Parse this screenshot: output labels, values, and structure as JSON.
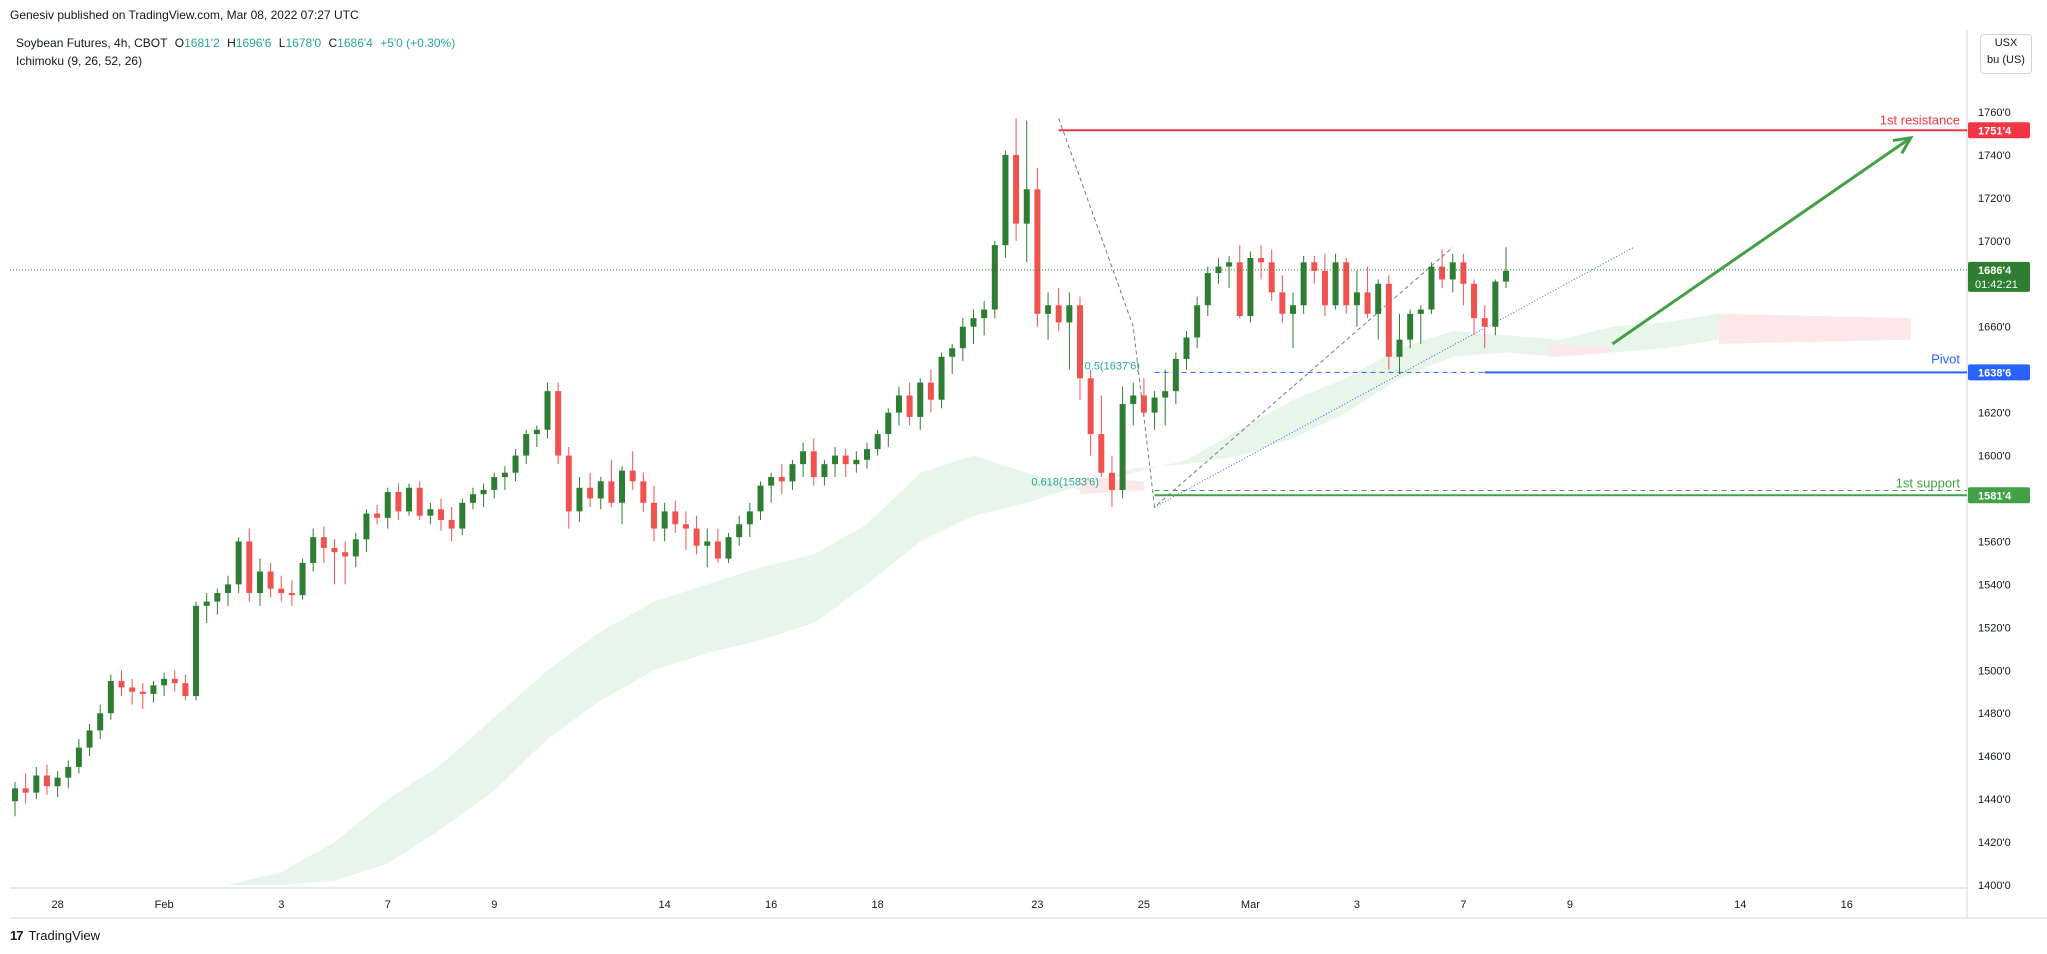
{
  "publisher_line": "Genesiv published on TradingView.com, Mar 08, 2022 07:27 UTC",
  "legend": {
    "symbol": "Soybean Futures, 4h, CBOT",
    "open_label": "O",
    "open": "1681'2",
    "high_label": "H",
    "high": "1696'6",
    "low_label": "L",
    "low": "1678'0",
    "close_label": "C",
    "close": "1686'4",
    "change": "+5'0 (+0.30%)",
    "indicator": "Ichimoku (9, 26, 52, 26)"
  },
  "price_scale": {
    "currency": "USX",
    "unit": "bu (US)"
  },
  "brand": "TradingView",
  "colors": {
    "up": "#2e7d32",
    "down": "#ef5350",
    "resistance": "#f23645",
    "pivot": "#2962ff",
    "support": "#43a047",
    "arrow": "#43a047",
    "cloud_green": "#e8f5e9",
    "cloud_red": "#fde8e8",
    "fib": "#26a69a",
    "trend": "#2962ff",
    "last_price": "#2e7d32"
  },
  "chart_data": {
    "type": "candlestick",
    "timeframe": "4h",
    "ylim": [
      1400,
      1770
    ],
    "y_ticks": [
      "1760'0",
      "1740'0",
      "1720'0",
      "1700'0",
      "1680'0",
      "1660'0",
      "1640'0",
      "1620'0",
      "1600'0",
      "1580'0",
      "1560'0",
      "1540'0",
      "1520'0",
      "1500'0",
      "1480'0",
      "1460'0",
      "1440'0",
      "1420'0",
      "1400'0"
    ],
    "y_tick_values": [
      1760,
      1740,
      1720,
      1700,
      1680,
      1660,
      1640,
      1620,
      1600,
      1580,
      1560,
      1540,
      1520,
      1500,
      1480,
      1460,
      1440,
      1420,
      1400
    ],
    "x_labels": [
      {
        "label": "28",
        "bar": 4
      },
      {
        "label": "Feb",
        "bar": 14
      },
      {
        "label": "3",
        "bar": 25
      },
      {
        "label": "7",
        "bar": 35
      },
      {
        "label": "9",
        "bar": 45
      },
      {
        "label": "14",
        "bar": 61
      },
      {
        "label": "16",
        "bar": 71
      },
      {
        "label": "18",
        "bar": 81
      },
      {
        "label": "23",
        "bar": 96
      },
      {
        "label": "25",
        "bar": 106
      },
      {
        "label": "Mar",
        "bar": 116
      },
      {
        "label": "3",
        "bar": 126
      },
      {
        "label": "7",
        "bar": 136
      },
      {
        "label": "9",
        "bar": 146
      },
      {
        "label": "14",
        "bar": 162
      },
      {
        "label": "16",
        "bar": 172
      }
    ],
    "candles": [
      [
        1439,
        1448,
        1432,
        1445
      ],
      [
        1445,
        1452,
        1438,
        1443
      ],
      [
        1443,
        1455,
        1440,
        1451
      ],
      [
        1451,
        1456,
        1442,
        1446
      ],
      [
        1446,
        1453,
        1441,
        1450
      ],
      [
        1450,
        1458,
        1445,
        1455
      ],
      [
        1455,
        1468,
        1452,
        1464
      ],
      [
        1464,
        1475,
        1460,
        1472
      ],
      [
        1472,
        1484,
        1468,
        1480
      ],
      [
        1480,
        1498,
        1477,
        1495
      ],
      [
        1495,
        1500,
        1488,
        1492
      ],
      [
        1492,
        1496,
        1484,
        1490
      ],
      [
        1490,
        1494,
        1482,
        1489
      ],
      [
        1489,
        1495,
        1485,
        1493
      ],
      [
        1493,
        1499,
        1488,
        1496
      ],
      [
        1496,
        1500,
        1490,
        1494
      ],
      [
        1494,
        1498,
        1486,
        1488
      ],
      [
        1488,
        1532,
        1486,
        1530
      ],
      [
        1530,
        1536,
        1522,
        1532
      ],
      [
        1532,
        1538,
        1526,
        1536
      ],
      [
        1536,
        1544,
        1530,
        1540
      ],
      [
        1540,
        1562,
        1536,
        1560
      ],
      [
        1560,
        1566,
        1532,
        1536
      ],
      [
        1536,
        1552,
        1530,
        1546
      ],
      [
        1546,
        1550,
        1534,
        1538
      ],
      [
        1538,
        1544,
        1532,
        1536
      ],
      [
        1536,
        1542,
        1530,
        1535
      ],
      [
        1535,
        1552,
        1533,
        1550
      ],
      [
        1550,
        1566,
        1546,
        1562
      ],
      [
        1562,
        1567,
        1550,
        1557
      ],
      [
        1557,
        1561,
        1540,
        1555
      ],
      [
        1555,
        1560,
        1540,
        1553
      ],
      [
        1553,
        1564,
        1548,
        1561
      ],
      [
        1561,
        1575,
        1555,
        1573
      ],
      [
        1573,
        1577,
        1568,
        1571
      ],
      [
        1571,
        1585,
        1566,
        1583
      ],
      [
        1583,
        1587,
        1570,
        1574
      ],
      [
        1574,
        1587,
        1572,
        1585
      ],
      [
        1585,
        1588,
        1570,
        1572
      ],
      [
        1572,
        1578,
        1568,
        1575
      ],
      [
        1575,
        1580,
        1565,
        1570
      ],
      [
        1570,
        1576,
        1560,
        1566
      ],
      [
        1566,
        1580,
        1563,
        1578
      ],
      [
        1578,
        1585,
        1575,
        1582
      ],
      [
        1582,
        1587,
        1576,
        1584
      ],
      [
        1584,
        1592,
        1580,
        1590
      ],
      [
        1590,
        1595,
        1584,
        1592
      ],
      [
        1592,
        1603,
        1588,
        1600
      ],
      [
        1600,
        1612,
        1596,
        1610
      ],
      [
        1610,
        1614,
        1604,
        1612
      ],
      [
        1612,
        1634,
        1608,
        1630
      ],
      [
        1630,
        1634,
        1596,
        1600
      ],
      [
        1600,
        1604,
        1566,
        1574
      ],
      [
        1574,
        1590,
        1569,
        1585
      ],
      [
        1585,
        1592,
        1576,
        1580
      ],
      [
        1580,
        1590,
        1575,
        1588
      ],
      [
        1588,
        1598,
        1576,
        1578
      ],
      [
        1578,
        1595,
        1568,
        1593
      ],
      [
        1593,
        1602,
        1584,
        1588
      ],
      [
        1588,
        1592,
        1574,
        1578
      ],
      [
        1578,
        1586,
        1560,
        1566
      ],
      [
        1566,
        1578,
        1560,
        1574
      ],
      [
        1574,
        1579,
        1564,
        1568
      ],
      [
        1568,
        1574,
        1556,
        1566
      ],
      [
        1566,
        1572,
        1554,
        1558
      ],
      [
        1558,
        1566,
        1548,
        1560
      ],
      [
        1560,
        1566,
        1550,
        1552
      ],
      [
        1552,
        1564,
        1550,
        1562
      ],
      [
        1562,
        1572,
        1558,
        1568
      ],
      [
        1568,
        1578,
        1562,
        1574
      ],
      [
        1574,
        1588,
        1570,
        1586
      ],
      [
        1586,
        1592,
        1578,
        1590
      ],
      [
        1590,
        1596,
        1582,
        1588
      ],
      [
        1588,
        1598,
        1584,
        1596
      ],
      [
        1596,
        1606,
        1590,
        1602
      ],
      [
        1602,
        1608,
        1586,
        1590
      ],
      [
        1590,
        1598,
        1586,
        1596
      ],
      [
        1596,
        1604,
        1590,
        1600
      ],
      [
        1600,
        1603,
        1590,
        1596
      ],
      [
        1596,
        1602,
        1592,
        1598
      ],
      [
        1598,
        1606,
        1594,
        1603
      ],
      [
        1603,
        1612,
        1600,
        1610
      ],
      [
        1610,
        1622,
        1604,
        1620
      ],
      [
        1620,
        1632,
        1614,
        1628
      ],
      [
        1628,
        1634,
        1614,
        1618
      ],
      [
        1618,
        1636,
        1612,
        1634
      ],
      [
        1634,
        1640,
        1620,
        1626
      ],
      [
        1626,
        1648,
        1622,
        1646
      ],
      [
        1646,
        1652,
        1638,
        1650
      ],
      [
        1650,
        1664,
        1644,
        1660
      ],
      [
        1660,
        1668,
        1652,
        1664
      ],
      [
        1664,
        1672,
        1656,
        1668
      ],
      [
        1668,
        1700,
        1664,
        1698
      ],
      [
        1698,
        1742,
        1692,
        1740
      ],
      [
        1740,
        1757,
        1700,
        1708
      ],
      [
        1708,
        1756,
        1690,
        1724
      ],
      [
        1724,
        1734,
        1660,
        1666
      ],
      [
        1666,
        1676,
        1654,
        1670
      ],
      [
        1670,
        1678,
        1658,
        1662
      ],
      [
        1662,
        1676,
        1640,
        1670
      ],
      [
        1670,
        1674,
        1626,
        1636
      ],
      [
        1636,
        1640,
        1600,
        1610
      ],
      [
        1610,
        1628,
        1590,
        1592
      ],
      [
        1592,
        1600,
        1576,
        1584
      ],
      [
        1584,
        1632,
        1580,
        1624
      ],
      [
        1624,
        1634,
        1614,
        1628
      ],
      [
        1628,
        1636,
        1618,
        1620
      ],
      [
        1620,
        1630,
        1612,
        1627
      ],
      [
        1627,
        1640,
        1614,
        1630
      ],
      [
        1630,
        1648,
        1624,
        1645
      ],
      [
        1645,
        1658,
        1640,
        1655
      ],
      [
        1655,
        1674,
        1650,
        1670
      ],
      [
        1670,
        1688,
        1665,
        1685
      ],
      [
        1685,
        1692,
        1680,
        1688
      ],
      [
        1688,
        1693,
        1678,
        1690
      ],
      [
        1690,
        1698,
        1664,
        1665
      ],
      [
        1665,
        1695,
        1662,
        1692
      ],
      [
        1692,
        1698,
        1682,
        1690
      ],
      [
        1690,
        1696,
        1672,
        1676
      ],
      [
        1676,
        1684,
        1662,
        1666
      ],
      [
        1666,
        1676,
        1650,
        1670
      ],
      [
        1670,
        1693,
        1666,
        1690
      ],
      [
        1690,
        1693,
        1680,
        1686
      ],
      [
        1686,
        1694,
        1665,
        1670
      ],
      [
        1670,
        1694,
        1668,
        1690
      ],
      [
        1690,
        1692,
        1666,
        1670
      ],
      [
        1670,
        1686,
        1660,
        1676
      ],
      [
        1676,
        1688,
        1664,
        1666
      ],
      [
        1666,
        1682,
        1654,
        1680
      ],
      [
        1680,
        1684,
        1640,
        1646
      ],
      [
        1646,
        1666,
        1638,
        1654
      ],
      [
        1654,
        1668,
        1650,
        1666
      ],
      [
        1666,
        1670,
        1652,
        1668
      ],
      [
        1668,
        1690,
        1666,
        1688
      ],
      [
        1688,
        1696,
        1678,
        1682
      ],
      [
        1682,
        1694,
        1676,
        1690
      ],
      [
        1690,
        1694,
        1670,
        1680
      ],
      [
        1680,
        1682,
        1656,
        1664
      ],
      [
        1664,
        1670,
        1650,
        1660
      ],
      [
        1660,
        1682,
        1656,
        1681
      ],
      [
        1681,
        1697,
        1678,
        1686
      ]
    ],
    "cloud_upper": [
      [
        20,
        1400
      ],
      [
        25,
        1406
      ],
      [
        30,
        1420
      ],
      [
        35,
        1440
      ],
      [
        40,
        1456
      ],
      [
        45,
        1478
      ],
      [
        50,
        1500
      ],
      [
        55,
        1518
      ],
      [
        60,
        1532
      ],
      [
        65,
        1540
      ],
      [
        70,
        1548
      ],
      [
        75,
        1554
      ],
      [
        80,
        1568
      ],
      [
        85,
        1592
      ],
      [
        90,
        1600
      ],
      [
        95,
        1592
      ],
      [
        100,
        1584
      ],
      [
        105,
        1592
      ],
      [
        110,
        1598
      ],
      [
        115,
        1612
      ],
      [
        120,
        1626
      ],
      [
        125,
        1636
      ],
      [
        130,
        1650
      ],
      [
        135,
        1658
      ],
      [
        140,
        1656
      ],
      [
        145,
        1654
      ],
      [
        150,
        1660
      ],
      [
        155,
        1662
      ],
      [
        160,
        1666
      ],
      [
        165,
        1665
      ],
      [
        170,
        1664
      ]
    ],
    "cloud_lower": [
      [
        20,
        1400
      ],
      [
        25,
        1400
      ],
      [
        30,
        1402
      ],
      [
        35,
        1410
      ],
      [
        40,
        1426
      ],
      [
        45,
        1444
      ],
      [
        50,
        1468
      ],
      [
        55,
        1486
      ],
      [
        60,
        1500
      ],
      [
        65,
        1508
      ],
      [
        70,
        1514
      ],
      [
        75,
        1522
      ],
      [
        80,
        1540
      ],
      [
        85,
        1560
      ],
      [
        90,
        1572
      ],
      [
        95,
        1578
      ],
      [
        100,
        1586
      ],
      [
        105,
        1594
      ],
      [
        110,
        1596
      ],
      [
        115,
        1600
      ],
      [
        120,
        1608
      ],
      [
        125,
        1620
      ],
      [
        130,
        1636
      ],
      [
        135,
        1646
      ],
      [
        140,
        1648
      ],
      [
        145,
        1646
      ],
      [
        150,
        1648
      ],
      [
        155,
        1650
      ],
      [
        160,
        1654
      ],
      [
        165,
        1656
      ],
      [
        170,
        1660
      ]
    ],
    "levels": [
      {
        "name": "1st resistance",
        "price": 1751.5,
        "label": "1751'4",
        "color": "#f23645"
      },
      {
        "name": "Pivot",
        "price": 1638.75,
        "label": "1638'6",
        "color": "#2962ff"
      },
      {
        "name": "1st support",
        "price": 1581.5,
        "label": "1581'4",
        "color": "#43a047"
      }
    ],
    "last_price": {
      "price": 1686.5,
      "label": "1686'4",
      "countdown": "01:42:21"
    },
    "fib_labels": [
      {
        "text": "0.5(1637'6)",
        "price": 1637.75,
        "bar": 101
      },
      {
        "text": "0.618(1583'6)",
        "price": 1583.75,
        "bar": 96
      }
    ],
    "forecast_arrow": {
      "from_bar": 150,
      "from_price": 1652,
      "to_bar": 178,
      "to_price": 1748
    }
  }
}
